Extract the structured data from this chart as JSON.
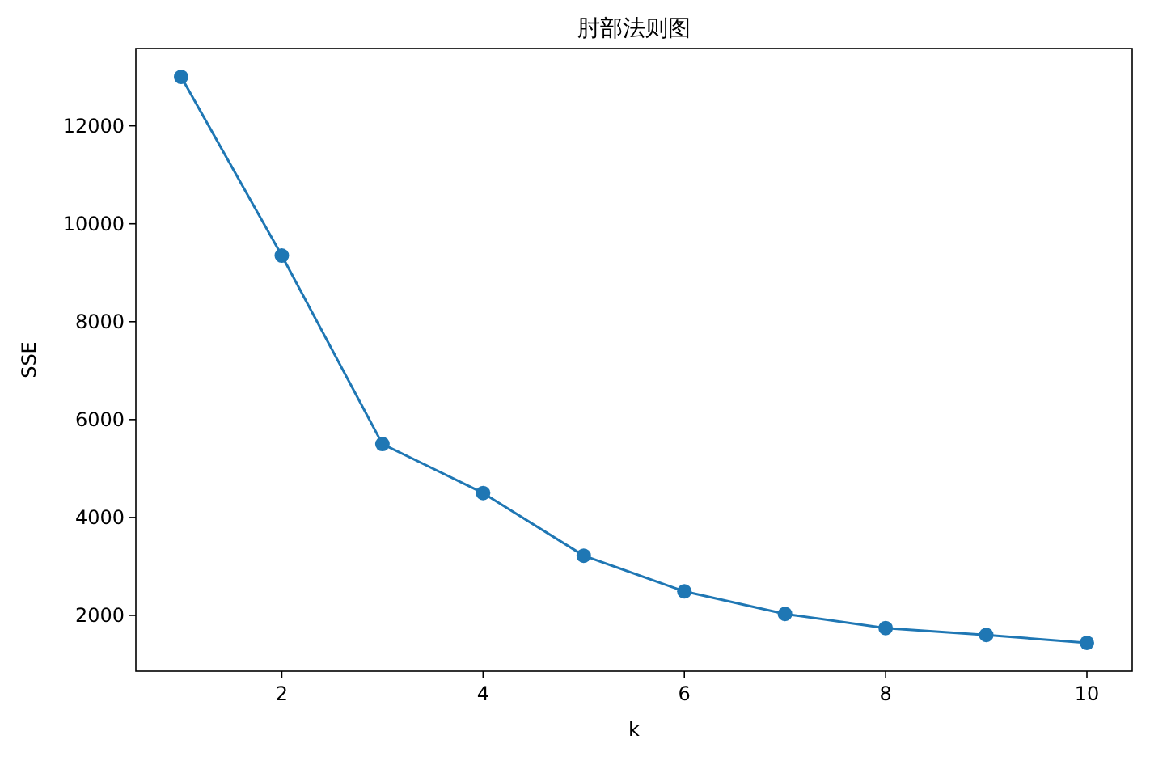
{
  "chart_data": {
    "type": "line",
    "title": "肘部法则图",
    "xlabel": "k",
    "ylabel": "SSE",
    "x": [
      1,
      2,
      3,
      4,
      5,
      6,
      7,
      8,
      9,
      10
    ],
    "values": [
      13000,
      9350,
      5500,
      4500,
      3220,
      2490,
      2030,
      1740,
      1600,
      1440
    ],
    "color": "#1f77b4",
    "marker": "circle",
    "line_style": "solid",
    "xlim": [
      0.55,
      10.45
    ],
    "ylim": [
      860,
      13580
    ],
    "xticks": [
      2,
      4,
      6,
      8,
      10
    ],
    "yticks": [
      2000,
      4000,
      6000,
      8000,
      10000,
      12000
    ]
  }
}
